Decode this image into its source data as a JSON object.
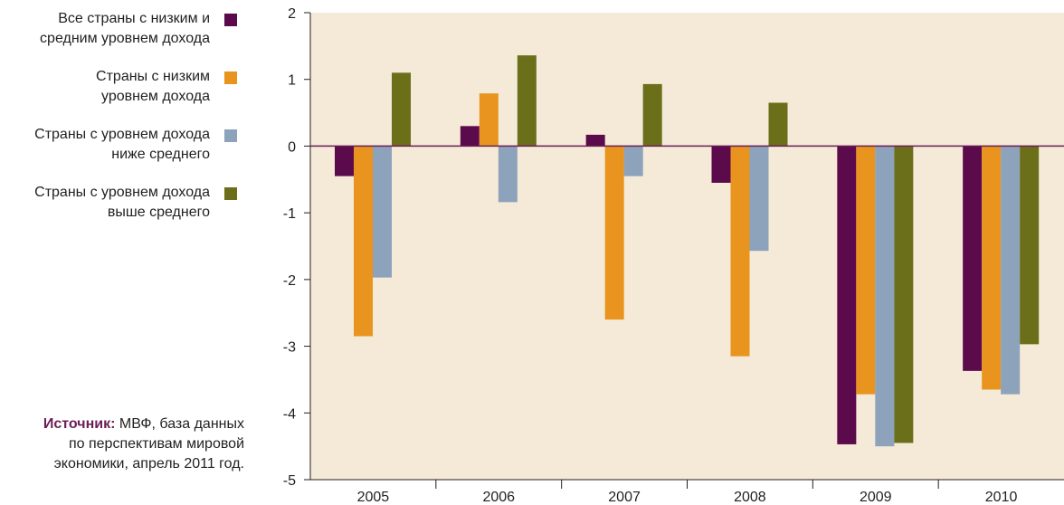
{
  "chart_data": {
    "type": "bar",
    "categories": [
      "2005",
      "2006",
      "2007",
      "2008",
      "2009",
      "2010"
    ],
    "series": [
      {
        "name": "Все страны с низким и\nсредним уровнем дохода",
        "color": "#5b0a4c",
        "values": [
          -0.45,
          0.3,
          0.17,
          -0.55,
          -4.47,
          -3.37
        ]
      },
      {
        "name": "Страны с низким\nуровнем дохода",
        "color": "#e8941e",
        "values": [
          -2.85,
          0.79,
          -2.6,
          -3.15,
          -3.72,
          -3.65
        ]
      },
      {
        "name": "Страны с уровнем дохода\nниже среднего",
        "color": "#8da2bb",
        "values": [
          -1.97,
          -0.84,
          -0.45,
          -1.57,
          -4.5,
          -3.72
        ]
      },
      {
        "name": "Страны с уровнем дохода\nвыше среднего",
        "color": "#6b6f1a",
        "values": [
          1.1,
          1.36,
          0.93,
          0.65,
          -4.45,
          -2.97
        ]
      }
    ],
    "ylim": [
      -5,
      2
    ],
    "yticks": [
      "2",
      "1",
      "0",
      "-1",
      "-2",
      "-3",
      "-4",
      "-5"
    ],
    "grid": false,
    "legend_position": "left",
    "plot_background": "#f4ead7",
    "axis_color": "#6b1e54"
  },
  "source": {
    "prefix": "Источник:",
    "text": "МВФ, база данных\nпо перспективам мировой\nэкономики, апрель 2011 год."
  }
}
